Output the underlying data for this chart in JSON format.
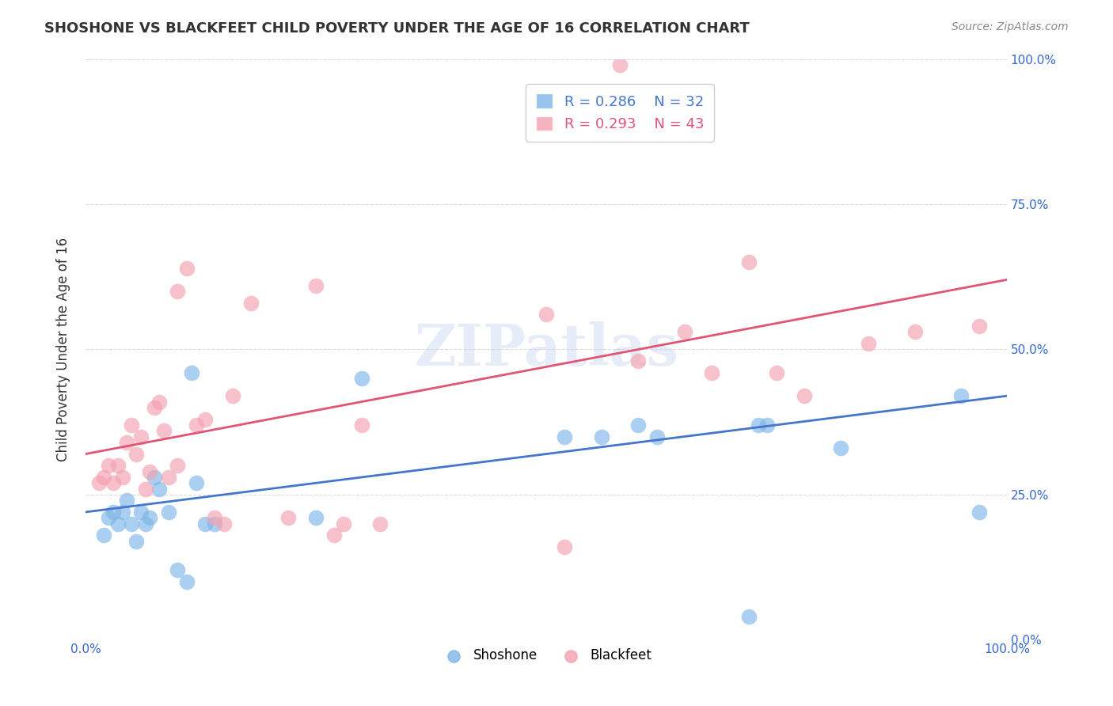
{
  "title": "SHOSHONE VS BLACKFEET CHILD POVERTY UNDER THE AGE OF 16 CORRELATION CHART",
  "source": "Source: ZipAtlas.com",
  "xlabel": "",
  "ylabel": "Child Poverty Under the Age of 16",
  "xlim": [
    0,
    1
  ],
  "ylim": [
    0,
    1
  ],
  "xtick_labels": [
    "0.0%",
    "100.0%"
  ],
  "ytick_labels": [
    "0.0%",
    "25.0%",
    "50.0%",
    "75.0%",
    "100.0%"
  ],
  "ytick_vals": [
    0.0,
    0.25,
    0.5,
    0.75,
    1.0
  ],
  "grid_color": "#cccccc",
  "background_color": "#ffffff",
  "watermark": "ZIPatlas",
  "legend_R_shoshone": "R = 0.286",
  "legend_N_shoshone": "N = 32",
  "legend_R_blackfeet": "R = 0.293",
  "legend_N_blackfeet": "N = 43",
  "shoshone_color": "#7EB6E8",
  "blackfeet_color": "#F4A0B0",
  "shoshone_line_color": "#4477CC",
  "blackfeet_line_color": "#E05575",
  "shoshone_x": [
    0.02,
    0.025,
    0.03,
    0.035,
    0.04,
    0.045,
    0.05,
    0.055,
    0.06,
    0.065,
    0.07,
    0.075,
    0.08,
    0.09,
    0.1,
    0.11,
    0.115,
    0.12,
    0.13,
    0.14,
    0.25,
    0.3,
    0.52,
    0.56,
    0.6,
    0.62,
    0.72,
    0.73,
    0.74,
    0.82,
    0.95,
    0.97
  ],
  "shoshone_y": [
    0.18,
    0.21,
    0.22,
    0.2,
    0.22,
    0.24,
    0.2,
    0.17,
    0.22,
    0.2,
    0.21,
    0.28,
    0.26,
    0.22,
    0.12,
    0.1,
    0.46,
    0.27,
    0.2,
    0.2,
    0.21,
    0.45,
    0.35,
    0.35,
    0.37,
    0.35,
    0.04,
    0.37,
    0.37,
    0.33,
    0.42,
    0.22
  ],
  "blackfeet_x": [
    0.015,
    0.02,
    0.025,
    0.03,
    0.035,
    0.04,
    0.045,
    0.05,
    0.055,
    0.06,
    0.065,
    0.07,
    0.075,
    0.08,
    0.085,
    0.09,
    0.1,
    0.1,
    0.11,
    0.12,
    0.13,
    0.14,
    0.15,
    0.16,
    0.18,
    0.22,
    0.25,
    0.27,
    0.28,
    0.3,
    0.32,
    0.5,
    0.52,
    0.58,
    0.6,
    0.65,
    0.68,
    0.72,
    0.75,
    0.78,
    0.85,
    0.9,
    0.97
  ],
  "blackfeet_y": [
    0.27,
    0.28,
    0.3,
    0.27,
    0.3,
    0.28,
    0.34,
    0.37,
    0.32,
    0.35,
    0.26,
    0.29,
    0.4,
    0.41,
    0.36,
    0.28,
    0.3,
    0.6,
    0.64,
    0.37,
    0.38,
    0.21,
    0.2,
    0.42,
    0.58,
    0.21,
    0.61,
    0.18,
    0.2,
    0.37,
    0.2,
    0.56,
    0.16,
    0.99,
    0.48,
    0.53,
    0.46,
    0.65,
    0.46,
    0.42,
    0.51,
    0.53,
    0.54
  ],
  "shoshone_line_x": [
    0,
    1
  ],
  "shoshone_line_y": [
    0.22,
    0.42
  ],
  "blackfeet_line_x": [
    0,
    1
  ],
  "blackfeet_line_y": [
    0.32,
    0.62
  ]
}
